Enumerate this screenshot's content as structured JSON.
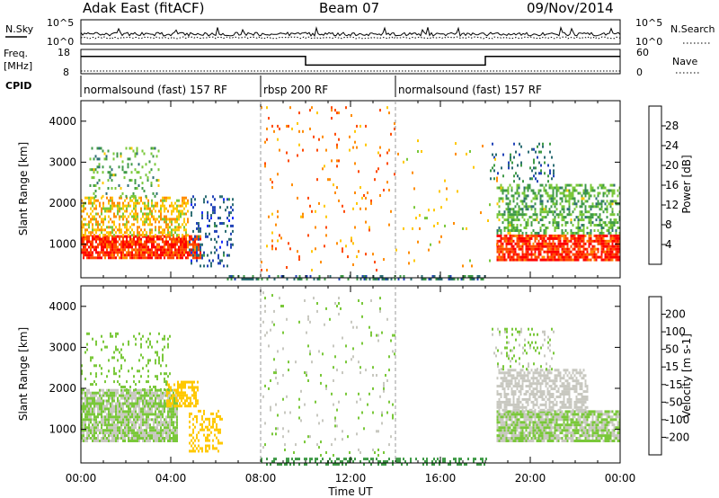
{
  "header": {
    "title": "Adak East (fitACF)",
    "beam": "Beam 07",
    "date": "09/Nov/2014"
  },
  "noise_panel": {
    "left_label": "N.Sky",
    "right_label": "N.Search",
    "left_ticks": [
      "10^5",
      "10^0"
    ],
    "right_ticks": [
      "10^5",
      "10^0"
    ]
  },
  "freq_panel": {
    "left_label_1": "Freq.",
    "left_label_2": "[MHz]",
    "right_label": "Nave",
    "left_ticks": [
      "18",
      "8"
    ],
    "right_ticks": [
      "60",
      "0"
    ],
    "freq_segments": [
      {
        "start_hour": 0,
        "end_hour": 10.0,
        "value": 16
      },
      {
        "start_hour": 10.0,
        "end_hour": 18.0,
        "value": 12
      },
      {
        "start_hour": 18.0,
        "end_hour": 24,
        "value": 16
      }
    ]
  },
  "cpid": {
    "label": "CPID",
    "modes": [
      {
        "name": "normalsound (fast) 157 RF",
        "start_hour": 0,
        "end_hour": 8.0
      },
      {
        "name": "rbsp 200 RF",
        "start_hour": 8.0,
        "end_hour": 14.0
      },
      {
        "name": "normalsound (fast) 157 RF",
        "start_hour": 14.0,
        "end_hour": 24
      }
    ]
  },
  "x_axis": {
    "label": "Time UT",
    "ticks": [
      "00:00",
      "04:00",
      "08:00",
      "12:00",
      "16:00",
      "20:00",
      "00:00"
    ]
  },
  "chart_data": [
    {
      "type": "heatmap",
      "name": "power-panel",
      "xlabel": "Time UT",
      "ylabel": "Slant Range [km]",
      "xlim": [
        0,
        24
      ],
      "ylim": [
        180,
        4500
      ],
      "yticks": [
        "1000",
        "2000",
        "3000",
        "4000"
      ],
      "colorbar": {
        "label": "Power [dB]",
        "ticks": [
          "28",
          "24",
          "20",
          "16",
          "12",
          "8",
          "4"
        ],
        "range": [
          0,
          32
        ],
        "colors": [
          "#1a2cff",
          "#2345b8",
          "#2e6e74",
          "#3f9a47",
          "#7ac83a",
          "#ffc800",
          "#ff8c00",
          "#ff4a00",
          "#ff0000"
        ]
      },
      "regions": [
        {
          "x0": 0.0,
          "x1": 5.3,
          "y0": 700,
          "y1": 1250,
          "value": 28,
          "density": 0.85
        },
        {
          "x0": 0.0,
          "x1": 4.8,
          "y0": 1250,
          "y1": 2200,
          "value": 20,
          "density": 0.5
        },
        {
          "x0": 0.3,
          "x1": 3.5,
          "y0": 2200,
          "y1": 3400,
          "value": 14,
          "density": 0.18
        },
        {
          "x0": 4.8,
          "x1": 6.8,
          "y0": 500,
          "y1": 2200,
          "value": 7,
          "density": 0.2
        },
        {
          "x0": 8.0,
          "x1": 14.0,
          "y0": 400,
          "y1": 4400,
          "value": 24,
          "density": 0.04
        },
        {
          "x0": 6.5,
          "x1": 18.0,
          "y0": 180,
          "y1": 300,
          "value": 10,
          "density": 0.35
        },
        {
          "x0": 18.5,
          "x1": 24.0,
          "y0": 650,
          "y1": 1300,
          "value": 28,
          "density": 0.8
        },
        {
          "x0": 18.5,
          "x1": 24.0,
          "y0": 1300,
          "y1": 2500,
          "value": 14,
          "density": 0.45
        },
        {
          "x0": 18.2,
          "x1": 21.0,
          "y0": 2500,
          "y1": 3500,
          "value": 10,
          "density": 0.15
        },
        {
          "x0": 14.0,
          "x1": 18.5,
          "y0": 500,
          "y1": 3600,
          "value": 20,
          "density": 0.02
        }
      ]
    },
    {
      "type": "heatmap",
      "name": "velocity-panel",
      "xlabel": "Time UT",
      "ylabel": "Slant Range [km]",
      "xlim": [
        0,
        24
      ],
      "ylim": [
        180,
        4500
      ],
      "yticks": [
        "1000",
        "2000",
        "3000",
        "4000"
      ],
      "colorbar": {
        "label": "Velocity [m s-1]",
        "ticks": [
          "200",
          "100",
          "50",
          "15",
          "-15",
          "-50",
          "-100",
          "-200"
        ],
        "range": [
          -250,
          250
        ],
        "colors": [
          "#1a2cff",
          "#2345b8",
          "#2e6e74",
          "#3f9a47",
          "#7ac83a",
          "#c8c8c0",
          "#ffc800",
          "#ff8c00",
          "#ff4a00",
          "#ff0000"
        ]
      },
      "regions": [
        {
          "x0": 0.0,
          "x1": 4.3,
          "y0": 750,
          "y1": 2000,
          "value": 0,
          "density": 0.85
        },
        {
          "x0": 3.8,
          "x1": 5.2,
          "y0": 1600,
          "y1": 2200,
          "value": 60,
          "density": 0.6
        },
        {
          "x0": 4.8,
          "x1": 6.3,
          "y0": 500,
          "y1": 1500,
          "value": 60,
          "density": 0.35
        },
        {
          "x0": 0.0,
          "x1": 4.0,
          "y0": 2000,
          "y1": 3400,
          "value": -30,
          "density": 0.15
        },
        {
          "x0": 8.0,
          "x1": 14.0,
          "y0": 400,
          "y1": 4400,
          "value": 0,
          "density": 0.035
        },
        {
          "x0": 8.0,
          "x1": 18.0,
          "y0": 180,
          "y1": 350,
          "value": -60,
          "density": 0.35
        },
        {
          "x0": 18.5,
          "x1": 24.0,
          "y0": 750,
          "y1": 1500,
          "value": 0,
          "density": 0.85
        },
        {
          "x0": 18.5,
          "x1": 22.5,
          "y0": 1500,
          "y1": 2500,
          "value": 40,
          "density": 0.6
        },
        {
          "x0": 18.2,
          "x1": 21.0,
          "y0": 2500,
          "y1": 3500,
          "value": 0,
          "density": 0.15
        }
      ]
    }
  ]
}
